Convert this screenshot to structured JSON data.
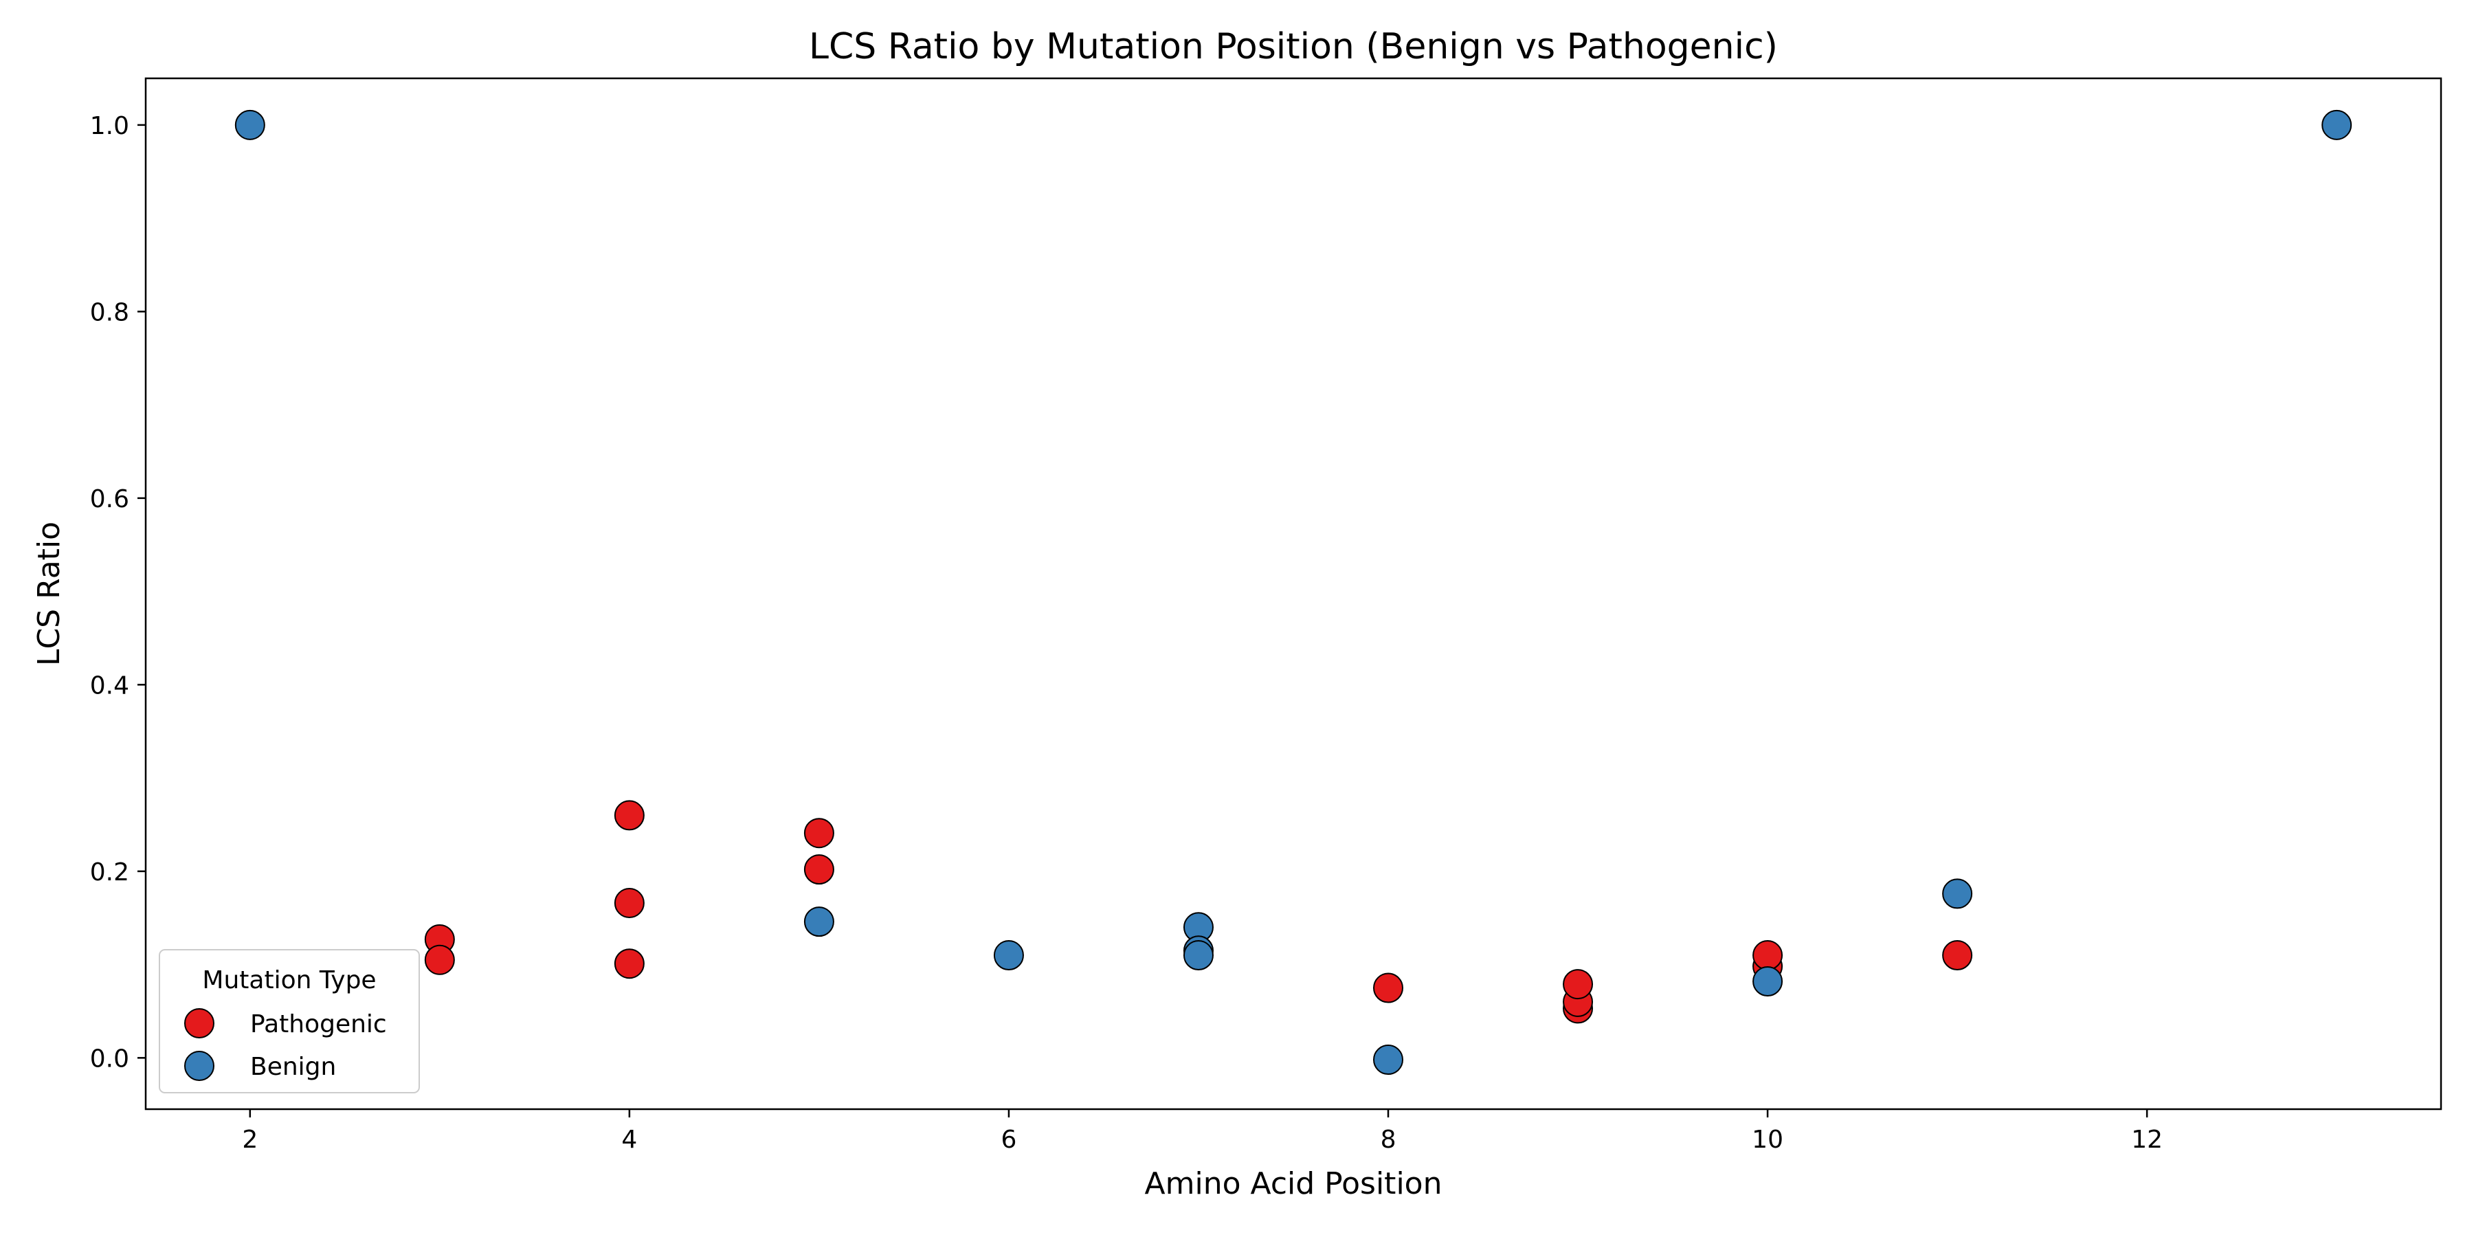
{
  "chart_data": {
    "type": "scatter",
    "title": "LCS Ratio by Mutation Position (Benign vs Pathogenic)",
    "xlabel": "Amino Acid Position",
    "ylabel": "LCS Ratio",
    "xlim": [
      1.45,
      13.55
    ],
    "ylim": [
      -0.055,
      1.05
    ],
    "xticks": [
      2,
      4,
      6,
      8,
      10,
      12
    ],
    "yticks": [
      0.0,
      0.2,
      0.4,
      0.6,
      0.8,
      1.0
    ],
    "xtick_labels": [
      "2",
      "4",
      "6",
      "8",
      "10",
      "12"
    ],
    "ytick_labels": [
      "0.0",
      "0.2",
      "0.4",
      "0.6",
      "0.8",
      "1.0"
    ],
    "grid": false,
    "legend": {
      "title": "Mutation Type",
      "placement": "lower-left"
    },
    "series": [
      {
        "name": "Pathogenic",
        "color": "#e41a1c",
        "points": [
          [
            3,
            0.127
          ],
          [
            3,
            0.105
          ],
          [
            4,
            0.26
          ],
          [
            4,
            0.166
          ],
          [
            4,
            0.101
          ],
          [
            5,
            0.241
          ],
          [
            5,
            0.202
          ],
          [
            8,
            0.075
          ],
          [
            9,
            0.053
          ],
          [
            9,
            0.06
          ],
          [
            9,
            0.079
          ],
          [
            10,
            0.098
          ],
          [
            10,
            0.11
          ],
          [
            11,
            0.11
          ]
        ]
      },
      {
        "name": "Benign",
        "color": "#377eb8",
        "points": [
          [
            2,
            1.0
          ],
          [
            5,
            0.146
          ],
          [
            6,
            0.11
          ],
          [
            7,
            0.14
          ],
          [
            7,
            0.115
          ],
          [
            7,
            0.11
          ],
          [
            8,
            -0.002
          ],
          [
            10,
            0.082
          ],
          [
            11,
            0.176
          ],
          [
            13,
            1.0
          ]
        ]
      }
    ]
  }
}
